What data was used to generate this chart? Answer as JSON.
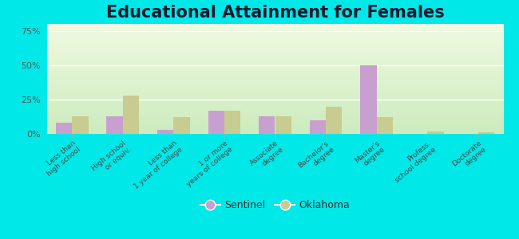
{
  "title": "Educational Attainment for Females",
  "categories": [
    "Less than\nhigh school",
    "High school\nor equiv.",
    "Less than\n1 year of college",
    "1 or more\nyears of college",
    "Associate\ndegree",
    "Bachelor's\ndegree",
    "Master's\ndegree",
    "Profess.\nschool degree",
    "Doctorate\ndegree"
  ],
  "sentinel_values": [
    8,
    13,
    3,
    17,
    13,
    10,
    50,
    0,
    0
  ],
  "oklahoma_values": [
    13,
    28,
    12,
    17,
    13,
    20,
    12,
    2,
    1
  ],
  "sentinel_color": "#c8a0d0",
  "oklahoma_color": "#c8cc90",
  "background_color": "#00e8e8",
  "ylabel_ticks": [
    "0%",
    "25%",
    "50%",
    "75%"
  ],
  "ytick_values": [
    0,
    25,
    50,
    75
  ],
  "ylim": [
    0,
    80
  ],
  "legend_sentinel": "Sentinel",
  "legend_oklahoma": "Oklahoma",
  "title_fontsize": 15,
  "bar_width": 0.32
}
